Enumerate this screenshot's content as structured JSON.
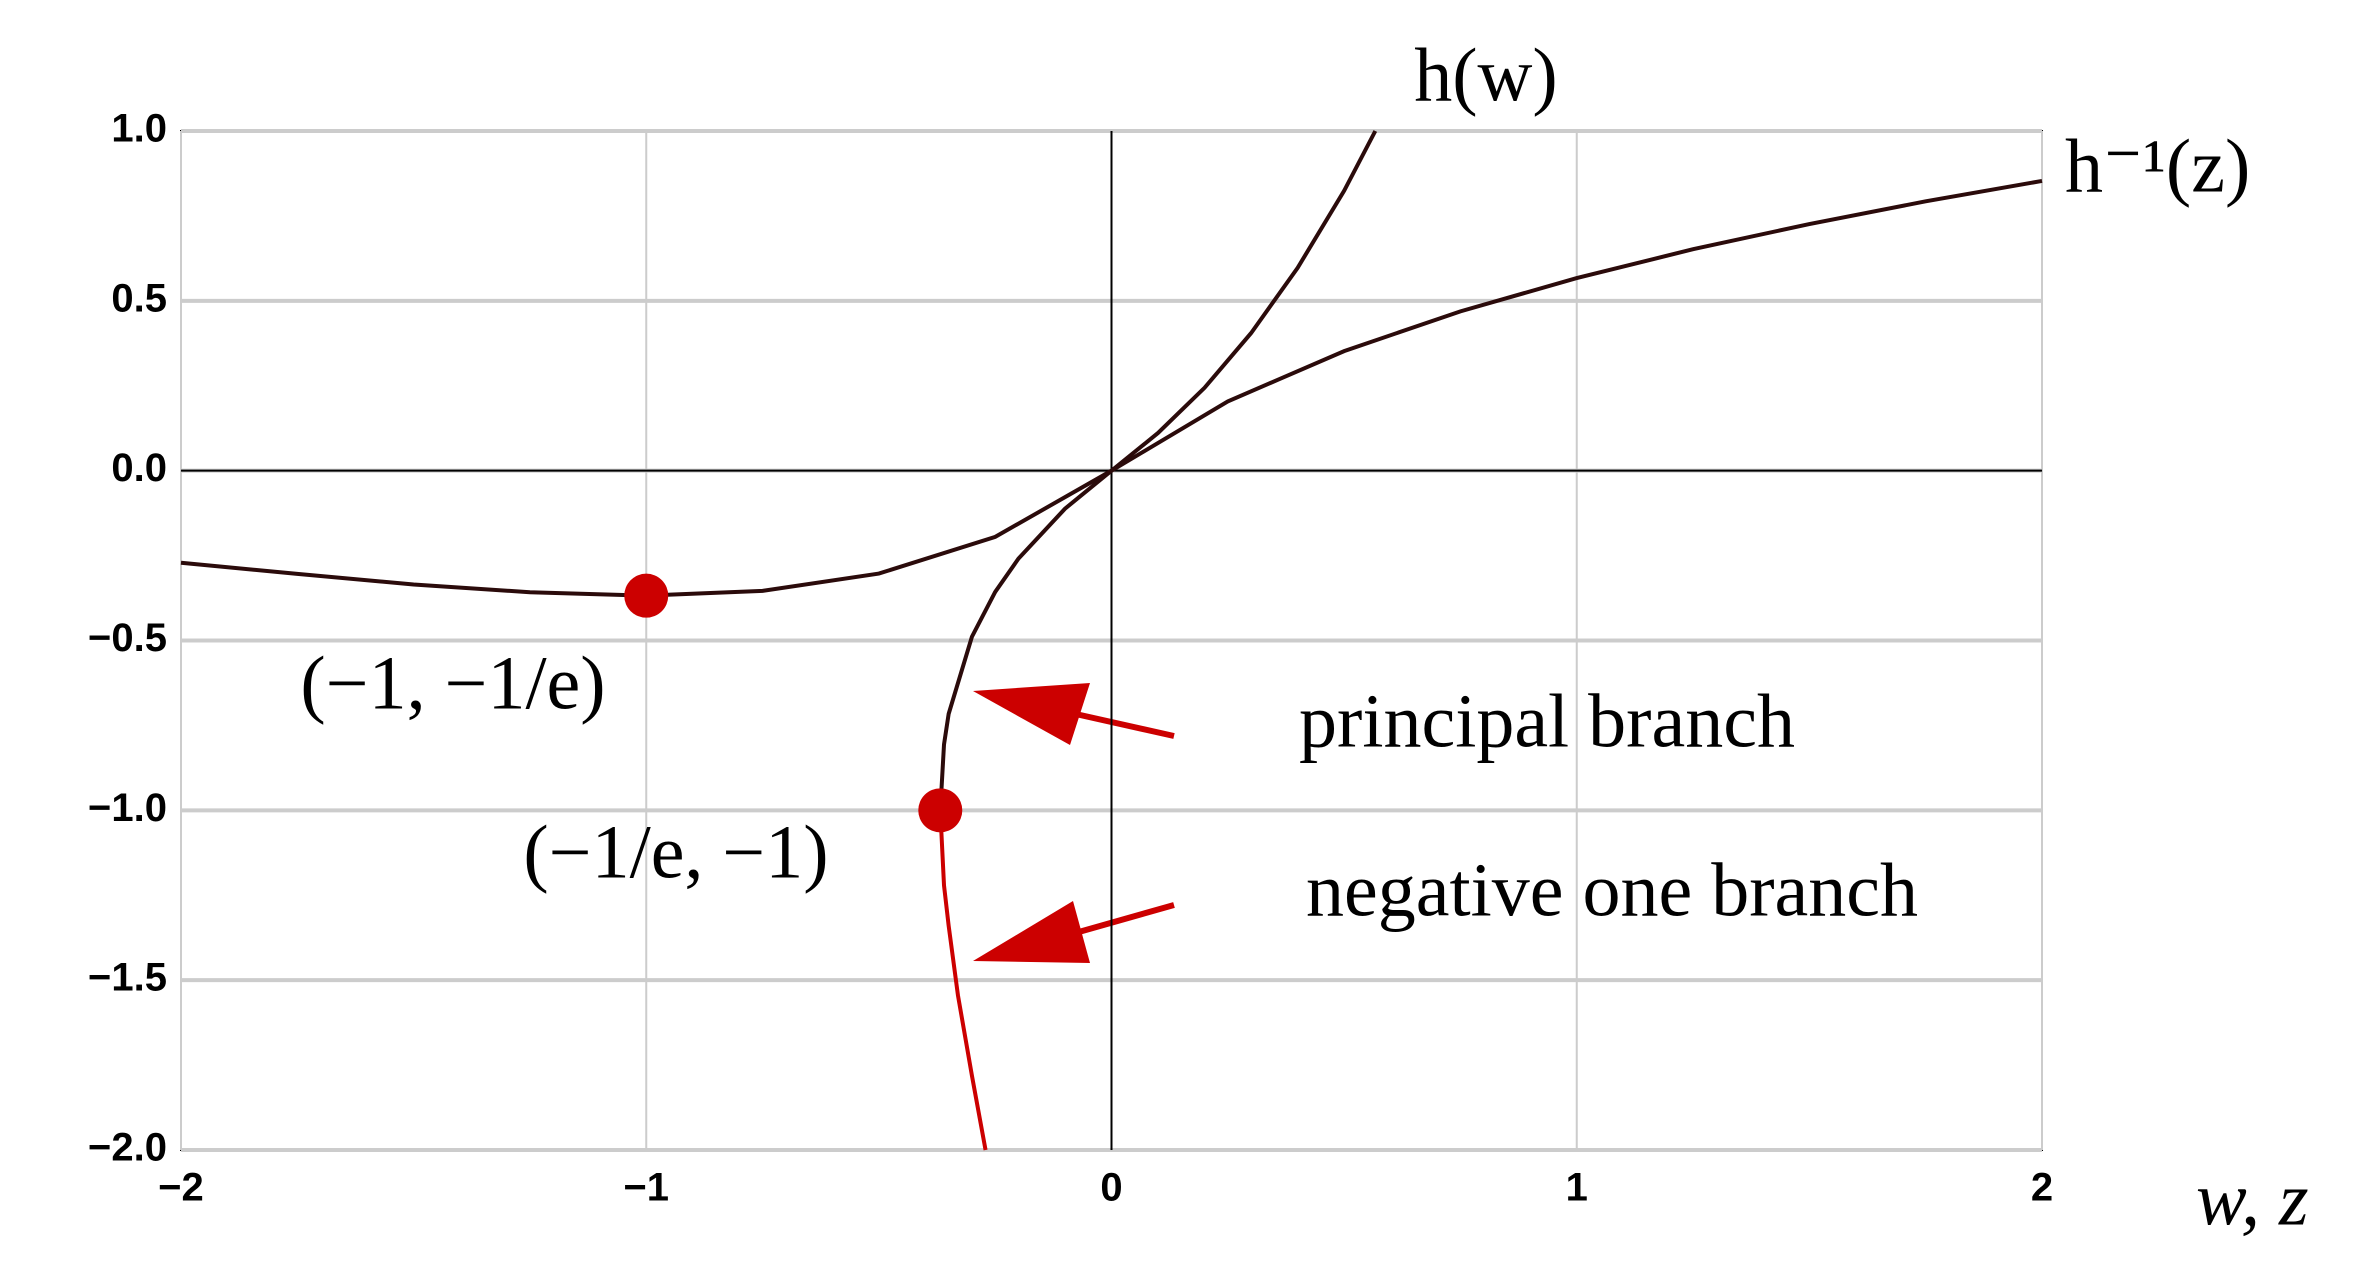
{
  "chart_data": {
    "type": "line",
    "xlabel": "w, z",
    "xlim": [
      -2,
      2
    ],
    "ylim": [
      -2,
      1
    ],
    "xticks": [
      {
        "value": -2,
        "label": "−2"
      },
      {
        "value": -1,
        "label": "−1"
      },
      0,
      1,
      2
    ],
    "yticks": [
      {
        "value": 1,
        "label": "1.0"
      },
      0.5,
      {
        "value": 0,
        "label": "0.0"
      },
      {
        "value": -0.5,
        "label": "−0.5"
      },
      {
        "value": -1,
        "label": "−1.0"
      },
      {
        "value": -1.5,
        "label": "−1.5"
      },
      {
        "value": -2,
        "label": "−2.0"
      }
    ],
    "grid": true,
    "series": [
      {
        "name": "h(w)",
        "color": "#2b0b0b",
        "x": [
          -2,
          -1.75,
          -1.5,
          -1.25,
          -1,
          -0.75,
          -0.5,
          -0.25,
          0,
          0.1,
          0.2,
          0.3,
          0.4,
          0.5,
          0.567
        ],
        "values": [
          -0.271,
          -0.304,
          -0.335,
          -0.358,
          -0.368,
          -0.354,
          -0.303,
          -0.195,
          0,
          0.111,
          0.244,
          0.405,
          0.597,
          0.824,
          1.0
        ]
      },
      {
        "name": "h⁻¹(z)",
        "color": "#2b0b0b",
        "x": [
          -0.368,
          -0.36,
          -0.35,
          -0.3,
          -0.25,
          -0.2,
          -0.1,
          0,
          0.25,
          0.5,
          0.75,
          1,
          1.25,
          1.5,
          1.75,
          2
        ],
        "values": [
          -1,
          -0.806,
          -0.716,
          -0.489,
          -0.357,
          -0.259,
          -0.112,
          0,
          0.204,
          0.352,
          0.469,
          0.567,
          0.652,
          0.726,
          0.793,
          0.853
        ]
      },
      {
        "color": "#cc0000",
        "x": [
          -0.368,
          -0.36,
          -0.35,
          -0.33,
          -0.3,
          -0.2707
        ],
        "values": [
          -1,
          -1.221,
          -1.34,
          -1.545,
          -1.781,
          -2.0
        ]
      }
    ],
    "points": [
      {
        "x": -1,
        "y": -0.368,
        "label": "(−1, −1/e)",
        "color": "#cc0000"
      },
      {
        "x": -0.368,
        "y": -1,
        "label": "(−1/e, −1)",
        "color": "#cc0000"
      }
    ],
    "annotations": [
      "principal branch",
      "negative one branch"
    ]
  }
}
